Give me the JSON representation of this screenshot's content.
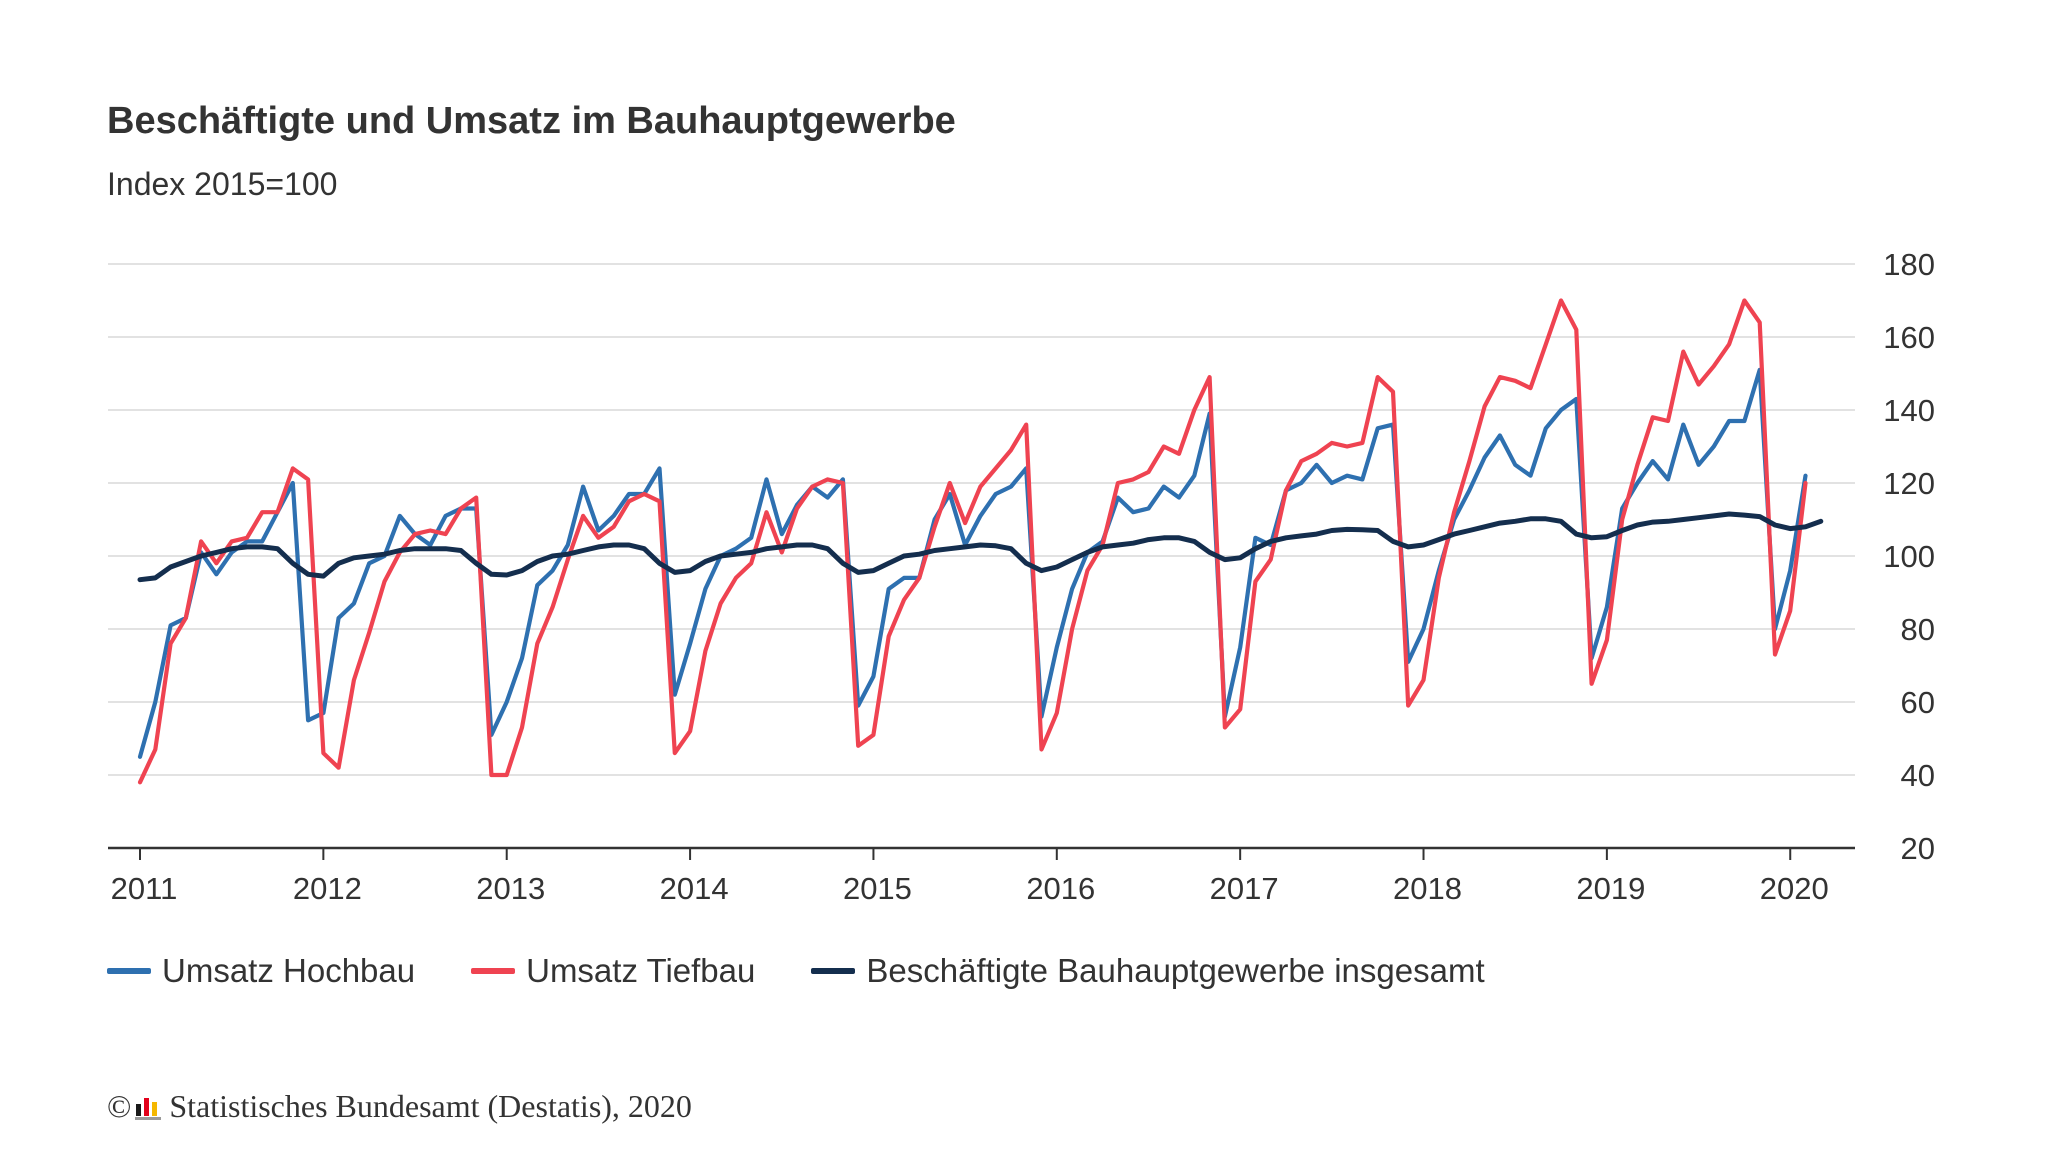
{
  "chart_data": {
    "type": "line",
    "title": "Beschäftigte und Umsatz im Bauhauptgewerbe",
    "subtitle": "Index 2015=100",
    "ylim": [
      20,
      180
    ],
    "y_ticks": [
      20,
      40,
      60,
      80,
      100,
      120,
      140,
      160,
      180
    ],
    "x_tick_labels": [
      "2011",
      "2012",
      "2013",
      "2014",
      "2015",
      "2016",
      "2017",
      "2018",
      "2019",
      "2020"
    ],
    "x_start": "2011-01",
    "grid": true,
    "legend_position": "bottom-left",
    "series": [
      {
        "name": "Umsatz Hochbau",
        "color": "#2e70b0",
        "values": [
          45,
          60,
          81,
          83,
          101,
          95,
          101,
          104,
          104,
          112,
          120,
          55,
          57,
          83,
          87,
          98,
          100,
          111,
          106,
          103,
          111,
          113,
          113,
          51,
          60,
          72,
          92,
          96,
          103,
          119,
          107,
          111,
          117,
          117,
          124,
          62,
          76,
          91,
          100,
          102,
          105,
          121,
          106,
          114,
          119,
          116,
          121,
          59,
          67,
          91,
          94,
          94,
          110,
          117,
          103,
          111,
          117,
          119,
          124,
          56,
          75,
          91,
          101,
          104,
          116,
          112,
          113,
          119,
          116,
          122,
          139,
          56,
          75,
          105,
          103,
          118,
          120,
          125,
          120,
          122,
          121,
          135,
          136,
          71,
          80,
          96,
          110,
          118,
          127,
          133,
          125,
          122,
          135,
          140,
          143,
          72,
          86,
          113,
          120,
          126,
          121,
          136,
          125,
          130,
          137,
          137,
          151,
          80,
          96,
          122
        ]
      },
      {
        "name": "Umsatz Tiefbau",
        "color": "#ef4351",
        "values": [
          38,
          47,
          76,
          83,
          104,
          98,
          104,
          105,
          112,
          112,
          124,
          121,
          46,
          42,
          66,
          79,
          93,
          101,
          106,
          107,
          106,
          113,
          116,
          40,
          40,
          53,
          76,
          86,
          99,
          111,
          105,
          108,
          115,
          117,
          115,
          46,
          52,
          74,
          87,
          94,
          98,
          112,
          101,
          113,
          119,
          121,
          120,
          48,
          51,
          78,
          88,
          94,
          108,
          120,
          109,
          119,
          124,
          129,
          136,
          47,
          57,
          80,
          96,
          103,
          120,
          121,
          123,
          130,
          128,
          140,
          149,
          53,
          58,
          93,
          99,
          118,
          126,
          128,
          131,
          130,
          131,
          149,
          145,
          59,
          66,
          94,
          112,
          126,
          141,
          149,
          148,
          146,
          158,
          170,
          162,
          65,
          77,
          110,
          125,
          138,
          137,
          156,
          147,
          152,
          158,
          170,
          164,
          73,
          85,
          120
        ]
      },
      {
        "name": "Beschäftigte Bauhauptgewerbe insgesamt",
        "color": "#142e4e",
        "values": [
          93.5,
          94,
          97,
          98.5,
          100,
          101,
          102,
          102.5,
          102.5,
          102,
          98,
          95,
          94.5,
          98,
          99.5,
          100,
          100.5,
          101.5,
          102,
          102,
          102,
          101.5,
          98,
          95,
          94.8,
          96,
          98.5,
          100,
          100.5,
          101.5,
          102.5,
          103,
          103,
          102,
          98,
          95.5,
          96,
          98.5,
          100,
          100.5,
          101,
          102,
          102.5,
          103,
          103,
          102,
          98,
          95.5,
          96,
          98,
          100,
          100.5,
          101.5,
          102,
          102.5,
          103,
          102.8,
          102,
          98,
          96,
          97,
          99,
          101,
          102.5,
          103,
          103.5,
          104.5,
          105,
          105,
          104,
          101,
          99,
          99.5,
          102,
          104,
          105,
          105.5,
          106,
          107,
          107.3,
          107.2,
          107,
          104,
          102.5,
          103,
          104.5,
          106,
          107,
          108,
          109,
          109.5,
          110.2,
          110.2,
          109.5,
          106,
          105,
          105.3,
          107,
          108.5,
          109.3,
          109.5,
          110,
          110.5,
          111,
          111.5,
          111.2,
          110.8,
          108.5,
          107.5,
          108,
          109.5
        ]
      }
    ]
  },
  "legend": {
    "items": [
      {
        "label": "Umsatz Hochbau",
        "color": "#2e70b0"
      },
      {
        "label": "Umsatz Tiefbau",
        "color": "#ef4351"
      },
      {
        "label": "Beschäftigte Bauhauptgewerbe insgesamt",
        "color": "#142e4e"
      }
    ]
  },
  "footer": {
    "copyright_symbol": "©",
    "source": "Statistisches Bundesamt (Destatis), 2020"
  }
}
